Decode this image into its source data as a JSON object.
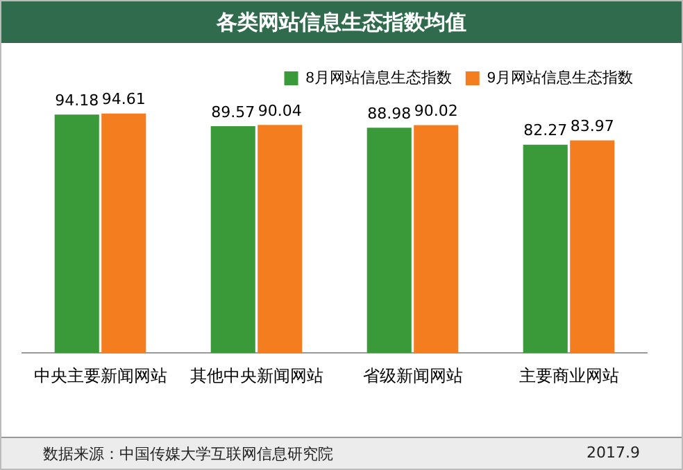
{
  "chart_data": {
    "type": "bar",
    "title": "各类网站信息生态指数均值",
    "categories": [
      "中央主要新闻网站",
      "其他中央新闻网站",
      "省级新闻网站",
      "主要商业网站"
    ],
    "series": [
      {
        "name": "8月网站信息生态指数",
        "color": "#3a9a3a",
        "values": [
          94.18,
          89.57,
          88.98,
          82.27
        ]
      },
      {
        "name": "9月网站信息生态指数",
        "color": "#f47d20",
        "values": [
          94.61,
          90.04,
          90.02,
          83.97
        ]
      }
    ],
    "data_labels": true,
    "legend": "top right",
    "grid": false,
    "tick_labels": "x",
    "annotations": [
      "数据来源：中国传媒大学互联网信息研究院",
      "2017.9"
    ]
  }
}
